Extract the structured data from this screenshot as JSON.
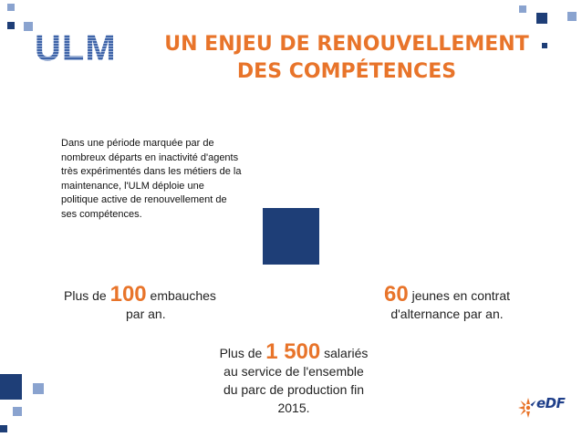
{
  "logo": {
    "text": "ULM"
  },
  "title": {
    "line1": "UN ENJEU DE RENOUVELLEMENT",
    "line2": "DES COMPÉTENCES"
  },
  "intro": {
    "text": "Dans une période marquée par de nombreux départs en inactivité d'agents très expérimentés dans les métiers de la maintenance, l'ULM déploie une politique active de renouvellement de ses compétences."
  },
  "stats": {
    "hires": {
      "prefix": "Plus de ",
      "number": "100",
      "suffix": " embauches",
      "line2": "par an."
    },
    "apprentices": {
      "number": "60",
      "suffix": " jeunes en contrat",
      "line2": "d'alternance par an."
    },
    "employees": {
      "prefix": "Plus de ",
      "number": "1 500",
      "suffix": " salariés",
      "line2": "au service de l'ensemble",
      "line3": "du parc de production fin",
      "line4": "2015."
    }
  },
  "brand": {
    "name": "EDF",
    "text": "eDF",
    "orange": "#e8742a",
    "blue": "#1f3f8a"
  },
  "colors": {
    "accent": "#e8742a",
    "navy": "#1e3e77",
    "light_blue": "#8aa3cf"
  }
}
